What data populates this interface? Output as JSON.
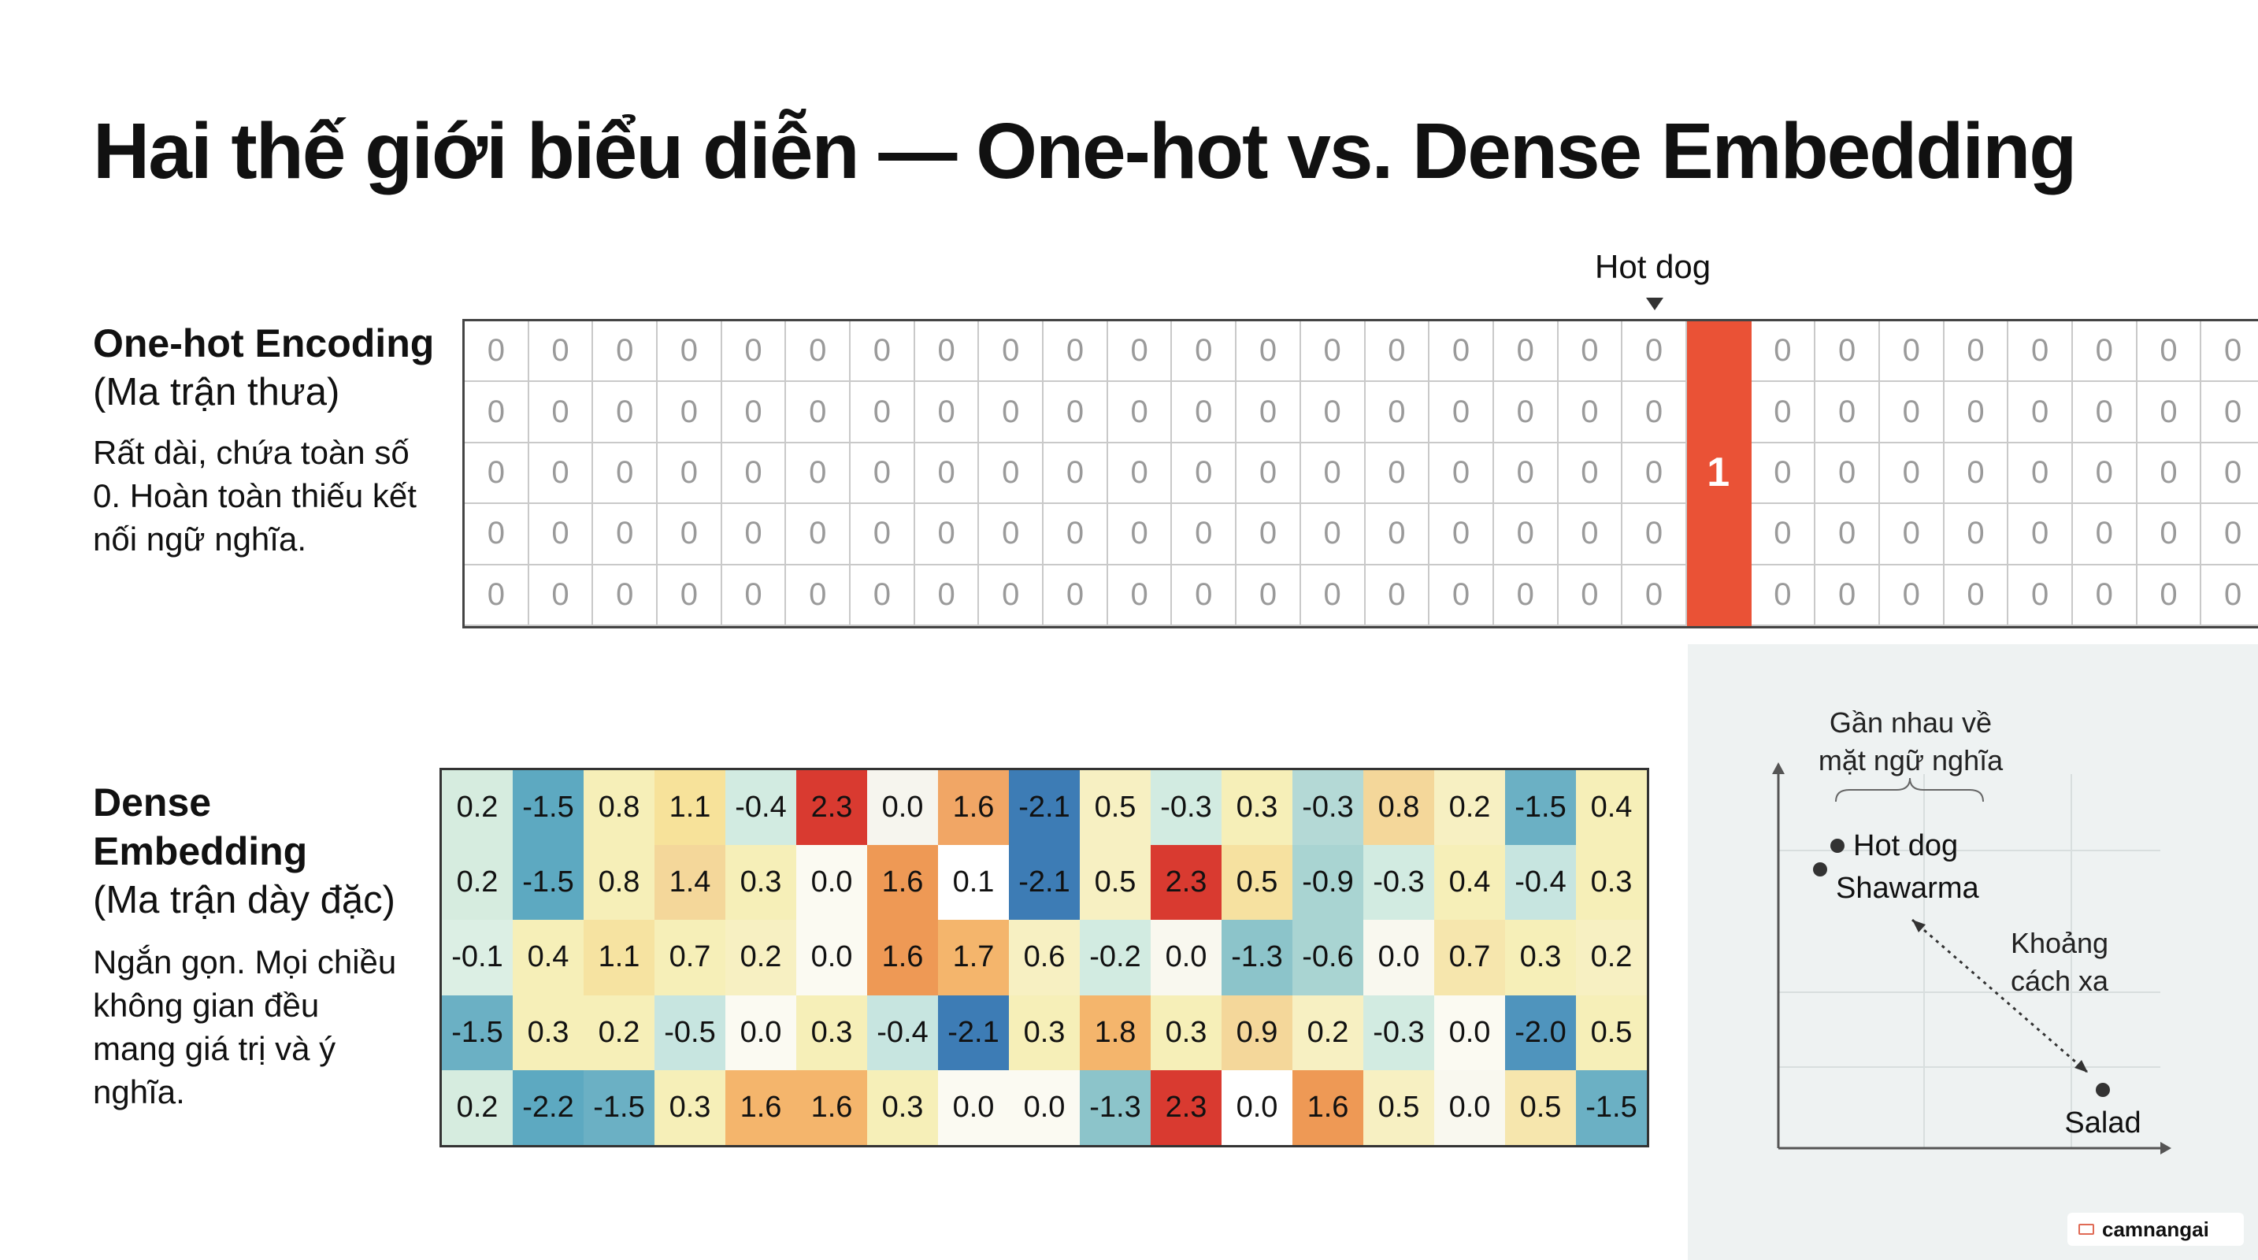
{
  "title": "Hai thế giới biểu diễn — One-hot vs. Dense Embedding",
  "onehot": {
    "title": "One-hot Encoding",
    "subtitle": "(Ma trận thưa)",
    "desc_lines": [
      "Rất dài, chứa toàn số",
      "0. Hoàn toàn thiếu kết",
      "nối ngữ nghĩa."
    ],
    "marker_label": "Hot dog",
    "columns": 28,
    "rows": 5,
    "hot_column": 19,
    "hot_row": 2,
    "zero_value": "0",
    "hot_value": "1",
    "hot_color": "#ea5236"
  },
  "dense": {
    "title_lines": [
      "Dense",
      "Embedding"
    ],
    "subtitle": "(Ma trận dày đặc)",
    "desc_lines": [
      "Ngắn gọn. Mọi chiều",
      "không gian đều",
      "mang giá trị và ý",
      "nghĩa."
    ],
    "values": [
      [
        "0.2",
        "-1.5",
        "0.8",
        "1.1",
        "-0.4",
        "2.3",
        "0.0",
        "1.6",
        "-2.1",
        "0.5",
        "-0.3",
        "0.3",
        "-0.3",
        "0.8",
        "0.2",
        "-1.5",
        "0.4"
      ],
      [
        "0.2",
        "-1.5",
        "0.8",
        "1.4",
        "0.3",
        "0.0",
        "1.6",
        "0.1",
        "-2.1",
        "0.5",
        "2.3",
        "0.5",
        "-0.9",
        "-0.3",
        "0.4",
        "-0.4",
        "0.3"
      ],
      [
        "-0.1",
        "0.4",
        "1.1",
        "0.7",
        "0.2",
        "0.0",
        "1.6",
        "1.7",
        "0.6",
        "-0.2",
        "0.0",
        "-1.3",
        "-0.6",
        "0.0",
        "0.7",
        "0.3",
        "0.2"
      ],
      [
        "-1.5",
        "0.3",
        "0.2",
        "-0.5",
        "0.0",
        "0.3",
        "-0.4",
        "-2.1",
        "0.3",
        "1.8",
        "0.3",
        "0.9",
        "0.2",
        "-0.3",
        "0.0",
        "-2.0",
        "0.5"
      ],
      [
        "0.2",
        "-2.2",
        "-1.5",
        "0.3",
        "1.6",
        "1.6",
        "0.3",
        "0.0",
        "0.0",
        "-1.3",
        "2.3",
        "0.0",
        "1.6",
        "0.5",
        "0.0",
        "0.5",
        "-1.5"
      ]
    ],
    "colors": [
      [
        "#d6ecdf",
        "#5da9c1",
        "#f6efb8",
        "#f7e29a",
        "#d2ebe1",
        "#d93a30",
        "#f6f5ee",
        "#f1a665",
        "#3d7cb5",
        "#f7f0c2",
        "#d2ebe1",
        "#f6efb8",
        "#b4d9d6",
        "#f4d79a",
        "#f7f0c2",
        "#6bb0c4",
        "#f6efb8"
      ],
      [
        "#d6ecdf",
        "#5da9c1",
        "#f6efb8",
        "#f4d79a",
        "#f6efb8",
        "#fbfaf2",
        "#ee9955",
        "#ffffff",
        "#3d7cb5",
        "#f7f0c2",
        "#d93a30",
        "#f6e1a0",
        "#a9d4d2",
        "#d2ebe1",
        "#f6efb8",
        "#c7e5e0",
        "#f6efb8"
      ],
      [
        "#dcefe4",
        "#f6efb8",
        "#f6e3a1",
        "#f6efb8",
        "#f7f0c2",
        "#fbfaf2",
        "#ee9955",
        "#f4b56c",
        "#f7f0c2",
        "#d2ebe1",
        "#f9f8ef",
        "#8cc4ca",
        "#a9d4d2",
        "#f9f8ef",
        "#f6e6ad",
        "#f6efb8",
        "#f7f0c2"
      ],
      [
        "#6bb0c4",
        "#f6efb8",
        "#f6efb8",
        "#c7e5e0",
        "#fbfaf2",
        "#f6efb8",
        "#c7e5e0",
        "#3d7cb5",
        "#f6efb8",
        "#f4b56c",
        "#f6efb8",
        "#f4d79a",
        "#f7f0c2",
        "#d2ebe1",
        "#fbfaf2",
        "#4f94bd",
        "#f6efb8"
      ],
      [
        "#d6ecdf",
        "#5da9c1",
        "#6bb0c4",
        "#f6efb8",
        "#f4b56c",
        "#f4b56c",
        "#f6efb8",
        "#fbfaf2",
        "#fbfaf2",
        "#8cc4ca",
        "#d93a30",
        "#ffffff",
        "#ee9955",
        "#f7f0c2",
        "#f9f8ef",
        "#f6e6ad",
        "#6bb0c4"
      ]
    ]
  },
  "scatter": {
    "annotation_top_lines": [
      "Gần nhau về",
      "mặt ngữ nghĩa"
    ],
    "annotation_far_lines": [
      "Khoảng",
      "cách xa"
    ],
    "points": [
      {
        "label": "Hot dog"
      },
      {
        "label": "Shawarma"
      },
      {
        "label": "Salad"
      }
    ]
  },
  "watermark": "camnangai"
}
